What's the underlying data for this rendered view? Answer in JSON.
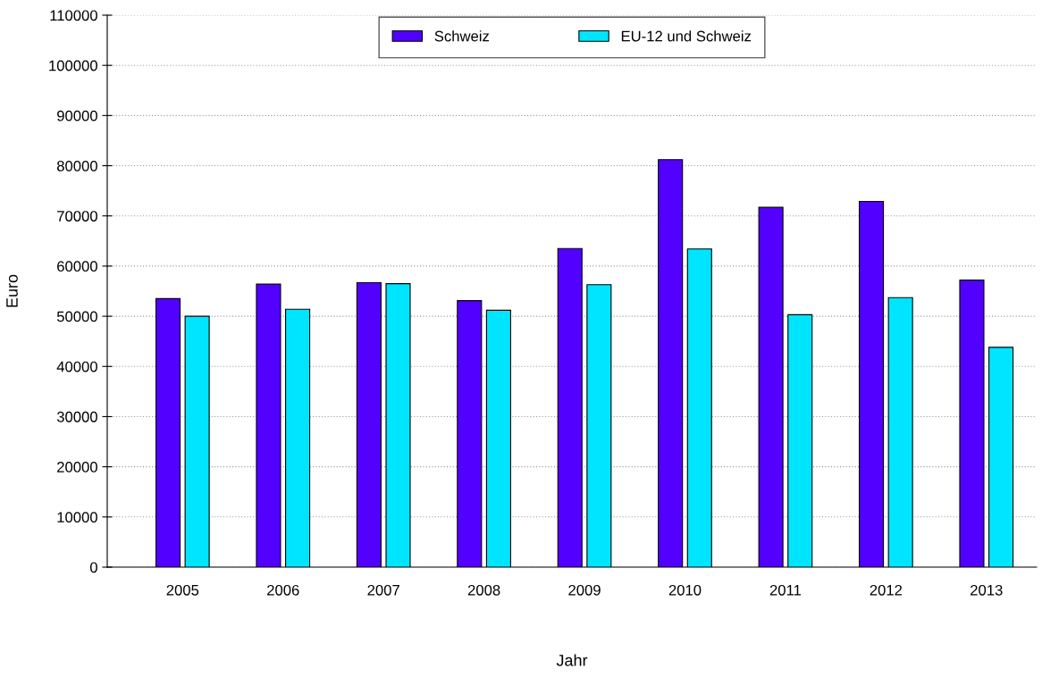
{
  "chart_data": {
    "type": "bar",
    "xlabel": "Jahr",
    "ylabel": "Euro",
    "categories": [
      "2005",
      "2006",
      "2007",
      "2008",
      "2009",
      "2010",
      "2011",
      "2012",
      "2013"
    ],
    "series": [
      {
        "name": "Schweiz",
        "color": "#5200ff",
        "values": [
          53500,
          56400,
          56700,
          53100,
          63500,
          81200,
          71700,
          72900,
          57200
        ]
      },
      {
        "name": "EU-12 und Schweiz",
        "color": "#00e5ff",
        "values": [
          50000,
          51400,
          56500,
          51200,
          56300,
          63400,
          50300,
          53700,
          43800
        ]
      }
    ],
    "ylim": [
      0,
      110000
    ],
    "yticks": [
      0,
      10000,
      20000,
      30000,
      40000,
      50000,
      60000,
      70000,
      80000,
      90000,
      100000,
      110000
    ],
    "grid": "y",
    "legend": "top"
  }
}
